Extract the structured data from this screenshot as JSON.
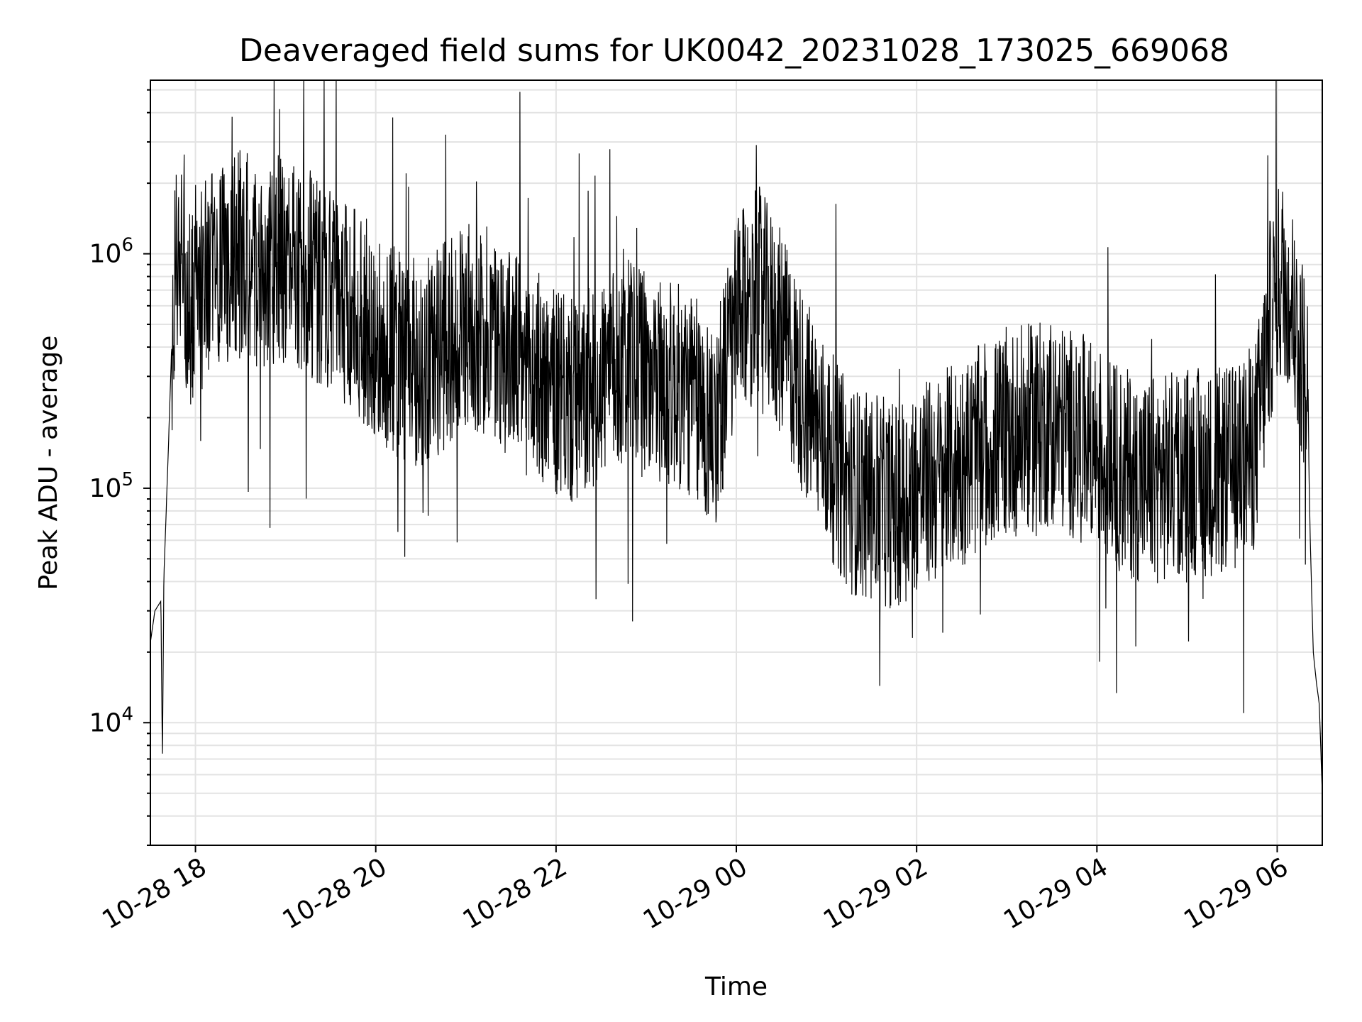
{
  "chart_data": {
    "type": "line",
    "title": "Deaveraged field sums for UK0042_20231028_173025_669068",
    "xlabel": "Time",
    "ylabel": "Peak ADU - average",
    "yscale": "log",
    "xlim": [
      "2023-10-28T17:30",
      "2023-10-29T06:30"
    ],
    "ylim": [
      3000,
      5500000
    ],
    "grid": true,
    "x_ticks": [
      {
        "label": "10-28 18",
        "value": "2023-10-28T18:00"
      },
      {
        "label": "10-28 20",
        "value": "2023-10-28T20:00"
      },
      {
        "label": "10-28 22",
        "value": "2023-10-28T22:00"
      },
      {
        "label": "10-29 00",
        "value": "2023-10-29T00:00"
      },
      {
        "label": "10-29 02",
        "value": "2023-10-29T02:00"
      },
      {
        "label": "10-29 04",
        "value": "2023-10-29T04:00"
      },
      {
        "label": "10-29 06",
        "value": "2023-10-29T06:00"
      }
    ],
    "y_ticks": [
      {
        "base": "10",
        "exp": "4",
        "value": 10000
      },
      {
        "base": "10",
        "exp": "5",
        "value": 100000
      },
      {
        "base": "10",
        "exp": "6",
        "value": 1000000
      }
    ],
    "series": [
      {
        "color": "#000000",
        "points": [
          [
            "2023-10-28T17:30",
            22000
          ],
          [
            "2023-10-28T17:33",
            30000
          ],
          [
            "2023-10-28T17:37",
            33000
          ],
          [
            "2023-10-28T17:38",
            7000
          ],
          [
            "2023-10-28T17:39",
            42000
          ],
          [
            "2023-10-28T17:42",
            150000
          ],
          [
            "2023-10-28T17:45",
            600000
          ],
          [
            "2023-10-28T17:48",
            900000
          ],
          [
            "2023-10-28T17:52",
            1150000
          ],
          [
            "2023-10-28T17:55",
            550000
          ],
          [
            "2023-10-28T18:00",
            700000
          ],
          [
            "2023-10-28T18:15",
            850000
          ],
          [
            "2023-10-28T18:30",
            1000000
          ],
          [
            "2023-10-28T18:45",
            900000
          ],
          [
            "2023-10-28T19:00",
            950000
          ],
          [
            "2023-10-28T19:15",
            850000
          ],
          [
            "2023-10-28T19:30",
            700000
          ],
          [
            "2023-10-28T19:45",
            600000
          ],
          [
            "2023-10-28T20:00",
            450000
          ],
          [
            "2023-10-28T20:15",
            380000
          ],
          [
            "2023-10-28T20:30",
            330000
          ],
          [
            "2023-10-28T20:45",
            400000
          ],
          [
            "2023-10-28T21:00",
            500000
          ],
          [
            "2023-10-28T21:15",
            450000
          ],
          [
            "2023-10-28T21:30",
            380000
          ],
          [
            "2023-10-28T21:45",
            300000
          ],
          [
            "2023-10-28T22:00",
            250000
          ],
          [
            "2023-10-28T22:15",
            220000
          ],
          [
            "2023-10-28T22:30",
            300000
          ],
          [
            "2023-10-28T22:45",
            350000
          ],
          [
            "2023-10-28T23:00",
            300000
          ],
          [
            "2023-10-28T23:15",
            280000
          ],
          [
            "2023-10-28T23:30",
            250000
          ],
          [
            "2023-10-28T23:45",
            180000
          ],
          [
            "2023-10-29T00:00",
            500000
          ],
          [
            "2023-10-29T00:15",
            700000
          ],
          [
            "2023-10-29T00:30",
            450000
          ],
          [
            "2023-10-29T00:45",
            250000
          ],
          [
            "2023-10-29T01:00",
            150000
          ],
          [
            "2023-10-29T01:15",
            100000
          ],
          [
            "2023-10-29T01:30",
            90000
          ],
          [
            "2023-10-29T01:45",
            85000
          ],
          [
            "2023-10-29T02:00",
            100000
          ],
          [
            "2023-10-29T02:15",
            110000
          ],
          [
            "2023-10-29T02:30",
            130000
          ],
          [
            "2023-10-29T02:45",
            150000
          ],
          [
            "2023-10-29T03:00",
            170000
          ],
          [
            "2023-10-29T03:15",
            180000
          ],
          [
            "2023-10-29T03:30",
            190000
          ],
          [
            "2023-10-29T03:45",
            170000
          ],
          [
            "2023-10-29T04:00",
            150000
          ],
          [
            "2023-10-29T04:15",
            120000
          ],
          [
            "2023-10-29T04:30",
            110000
          ],
          [
            "2023-10-29T04:45",
            110000
          ],
          [
            "2023-10-29T05:00",
            120000
          ],
          [
            "2023-10-29T05:15",
            115000
          ],
          [
            "2023-10-29T05:30",
            120000
          ],
          [
            "2023-10-29T05:45",
            150000
          ],
          [
            "2023-10-29T05:50",
            250000
          ],
          [
            "2023-10-29T05:55",
            500000
          ],
          [
            "2023-10-29T06:00",
            700000
          ],
          [
            "2023-10-29T06:05",
            800000
          ],
          [
            "2023-10-29T06:10",
            600000
          ],
          [
            "2023-10-29T06:15",
            400000
          ],
          [
            "2023-10-29T06:20",
            300000
          ],
          [
            "2023-10-29T06:22",
            60000
          ],
          [
            "2023-10-29T06:24",
            20000
          ],
          [
            "2023-10-29T06:26",
            15000
          ],
          [
            "2023-10-29T06:28",
            12000
          ],
          [
            "2023-10-29T06:30",
            5000
          ]
        ]
      }
    ]
  }
}
